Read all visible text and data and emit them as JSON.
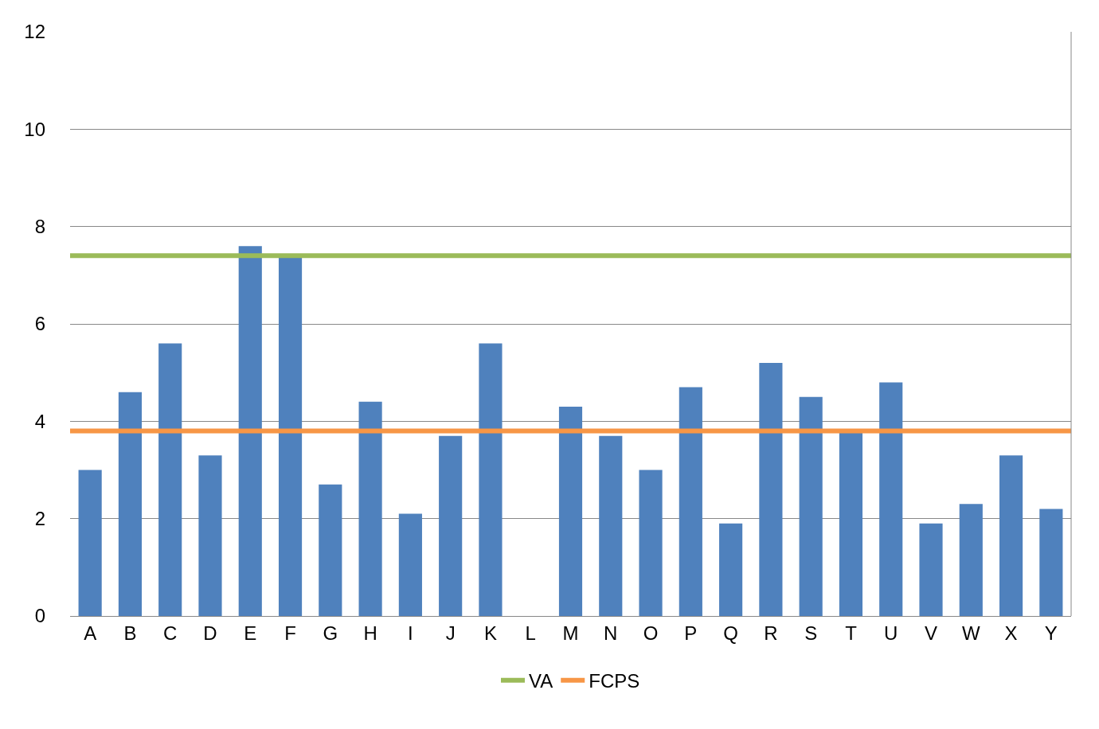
{
  "chart_data": {
    "type": "bar",
    "categories": [
      "A",
      "B",
      "C",
      "D",
      "E",
      "F",
      "G",
      "H",
      "I",
      "J",
      "K",
      "L",
      "M",
      "N",
      "O",
      "P",
      "Q",
      "R",
      "S",
      "T",
      "U",
      "V",
      "W",
      "X",
      "Y"
    ],
    "values": [
      3.0,
      4.6,
      5.6,
      3.3,
      7.6,
      7.4,
      2.7,
      4.4,
      2.1,
      3.7,
      5.6,
      null,
      4.3,
      3.7,
      3.0,
      4.7,
      1.9,
      5.2,
      4.5,
      3.8,
      4.8,
      1.9,
      2.3,
      3.3,
      2.2
    ],
    "color": "#4f81bd",
    "ylim": [
      0,
      12
    ],
    "yticks": [
      0,
      2,
      4,
      6,
      8,
      10,
      12
    ],
    "grid": "y",
    "ref_lines": [
      {
        "axis": "y",
        "value": 7.4,
        "label": "VA",
        "color": "#9bbb59"
      },
      {
        "axis": "y",
        "value": 3.8,
        "label": "FCPS",
        "color": "#f79646"
      }
    ],
    "legend": "bottom"
  }
}
